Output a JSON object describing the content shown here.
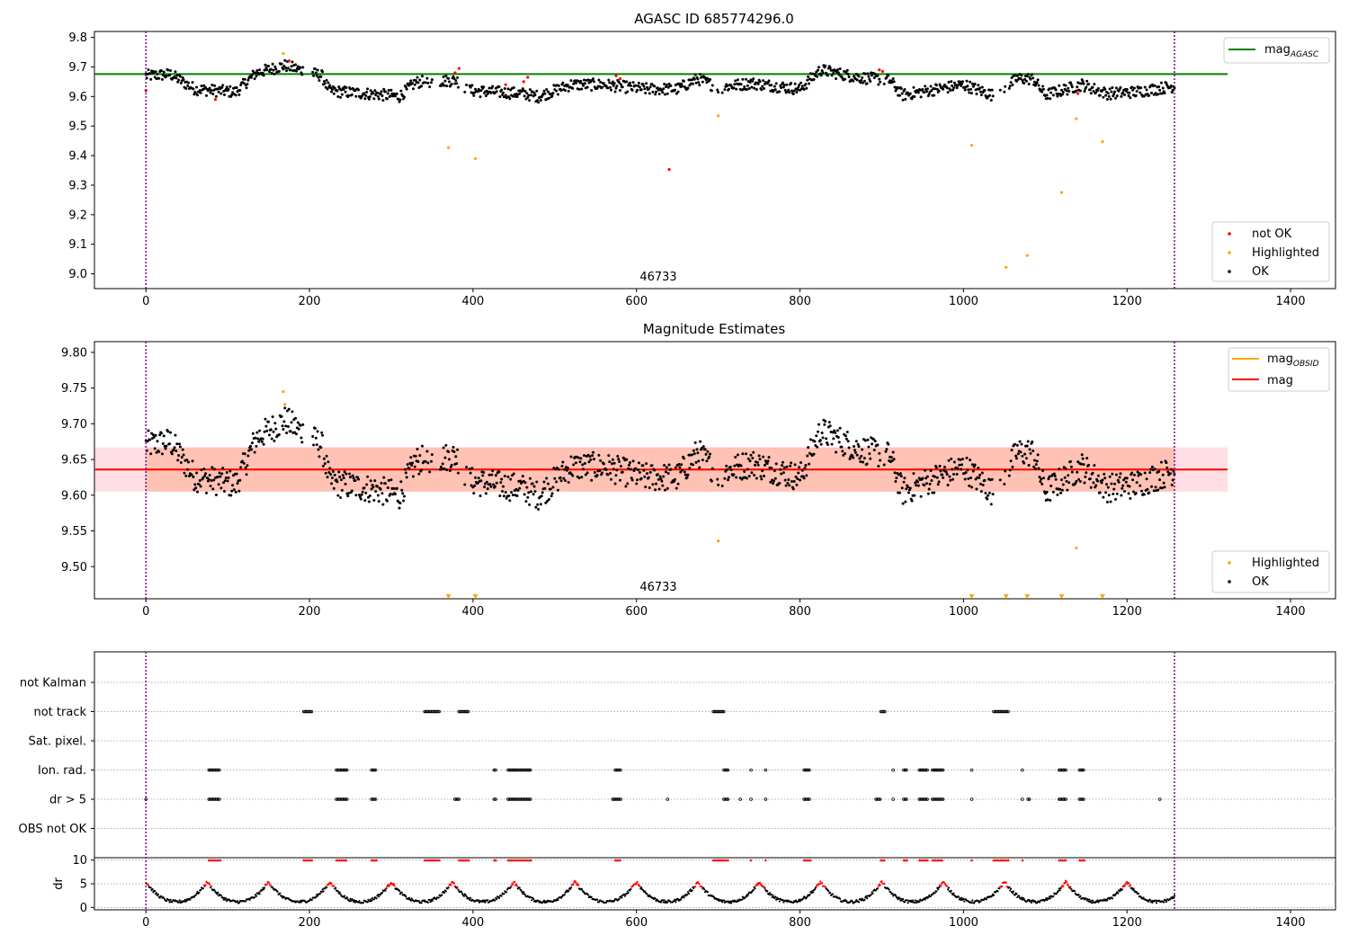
{
  "colors": {
    "ok": "#000000",
    "not_ok": "#ff0000",
    "highlighted": "#ffa500",
    "mag_agasc": "#008000",
    "mag": "#ff0000",
    "mag_obsid": "#ffa500",
    "band": "#ffc0cb",
    "band2": "#ffa07a",
    "obs_line": "#800080",
    "grid": "#b0b0b0"
  },
  "chart_data": [
    {
      "type": "scatter",
      "title": "AGASC ID 685774296.0",
      "annotation": "46733",
      "xlim": [
        -63,
        1455
      ],
      "ylim": [
        8.95,
        9.82
      ],
      "xticks": [
        0,
        200,
        400,
        600,
        800,
        1000,
        1200,
        1400
      ],
      "yticks": [
        9.0,
        9.1,
        9.2,
        9.3,
        9.4,
        9.5,
        9.6,
        9.7,
        9.8
      ],
      "ytick_labels": [
        "9.0",
        "9.1",
        "9.2",
        "9.3",
        "9.4",
        "9.5",
        "9.6",
        "9.7",
        "9.8"
      ],
      "obs_boundaries": [
        0,
        1258
      ],
      "hline": {
        "y": 9.676,
        "x": [
          -63,
          1323
        ],
        "label": "mag",
        "label_sub": "AGASC"
      },
      "legend_upper": [
        "mag_AGASC"
      ],
      "legend_lower": [
        "not OK",
        "Highlighted",
        "OK"
      ],
      "ok_series_note": "noisy time series of ~1260 points around 9.63",
      "highlighted_points": [
        [
          168,
          9.745
        ],
        [
          370,
          9.427
        ],
        [
          403,
          9.39
        ],
        [
          700,
          9.535
        ],
        [
          1010,
          9.435
        ],
        [
          1052,
          9.022
        ],
        [
          1078,
          9.062
        ],
        [
          1120,
          9.275
        ],
        [
          1138,
          9.525
        ],
        [
          1170,
          9.447
        ]
      ],
      "not_ok_points": [
        [
          0,
          9.62
        ],
        [
          85,
          9.59
        ],
        [
          175,
          9.72
        ],
        [
          378,
          9.68
        ],
        [
          383,
          9.695
        ],
        [
          440,
          9.64
        ],
        [
          462,
          9.65
        ],
        [
          467,
          9.665
        ],
        [
          575,
          9.67
        ],
        [
          580,
          9.66
        ],
        [
          640,
          9.353
        ],
        [
          897,
          9.69
        ],
        [
          901,
          9.685
        ],
        [
          1140,
          9.61
        ]
      ]
    },
    {
      "type": "scatter",
      "title": "Magnitude Estimates",
      "annotation": "46733",
      "xlim": [
        -63,
        1455
      ],
      "ylim": [
        9.455,
        9.815
      ],
      "xticks": [
        0,
        200,
        400,
        600,
        800,
        1000,
        1200,
        1400
      ],
      "yticks": [
        9.5,
        9.55,
        9.6,
        9.65,
        9.7,
        9.75,
        9.8
      ],
      "ytick_labels": [
        "9.50",
        "9.55",
        "9.60",
        "9.65",
        "9.70",
        "9.75",
        "9.80"
      ],
      "obs_boundaries": [
        0,
        1258
      ],
      "mag_line": {
        "y": 9.636,
        "x": [
          -63,
          1323
        ]
      },
      "band": {
        "y": [
          9.605,
          9.667
        ],
        "x": [
          -63,
          1323
        ]
      },
      "obsid_band": {
        "y": [
          9.605,
          9.667
        ],
        "x": [
          0,
          1258
        ]
      },
      "obsid_line": {
        "y": 9.636,
        "x": [
          0,
          1258
        ]
      },
      "legend_upper": [
        {
          "label": "mag",
          "sub": "OBSID"
        },
        {
          "label": "mag",
          "sub": ""
        }
      ],
      "legend_lower": [
        "Highlighted",
        "OK"
      ],
      "highlighted_points": [
        [
          168,
          9.745
        ],
        [
          170,
          9.727
        ],
        [
          700,
          9.536
        ],
        [
          1138,
          9.526
        ]
      ],
      "offscale_markers_x": [
        370,
        403,
        1010,
        1052,
        1078,
        1120,
        1170
      ]
    },
    {
      "type": "scatter",
      "title": "",
      "xlim": [
        -63,
        1455
      ],
      "flag_rows": [
        "not Kalman",
        "not track",
        "Sat. pixel.",
        "Ion. rad.",
        "dr > 5",
        "OBS not OK"
      ],
      "flag_ranges": {
        "not track": [
          [
            193,
            203
          ],
          [
            341,
            359
          ],
          [
            383,
            395
          ],
          [
            694,
            707
          ],
          [
            899,
            904
          ],
          [
            1037,
            1055
          ]
        ],
        "Ion. rad.": [
          [
            77,
            91
          ],
          [
            233,
            246
          ],
          [
            276,
            282
          ],
          [
            426,
            428
          ],
          [
            443,
            471
          ],
          [
            574,
            581
          ],
          [
            707,
            712
          ],
          [
            740,
            740
          ],
          [
            758,
            758
          ],
          [
            805,
            813
          ],
          [
            914,
            914
          ],
          [
            927,
            931
          ],
          [
            946,
            956
          ],
          [
            962,
            975
          ],
          [
            1010,
            1010
          ],
          [
            1072,
            1072
          ],
          [
            1117,
            1125
          ],
          [
            1142,
            1148
          ]
        ],
        "dr > 5": [
          [
            0,
            0
          ],
          [
            77,
            91
          ],
          [
            233,
            246
          ],
          [
            276,
            282
          ],
          [
            378,
            384
          ],
          [
            426,
            428
          ],
          [
            443,
            471
          ],
          [
            571,
            581
          ],
          [
            638,
            638
          ],
          [
            707,
            712
          ],
          [
            727,
            727
          ],
          [
            740,
            740
          ],
          [
            758,
            758
          ],
          [
            805,
            813
          ],
          [
            893,
            898
          ],
          [
            914,
            914
          ],
          [
            927,
            931
          ],
          [
            946,
            956
          ],
          [
            962,
            975
          ],
          [
            1010,
            1010
          ],
          [
            1072,
            1072
          ],
          [
            1079,
            1082
          ],
          [
            1117,
            1125
          ],
          [
            1142,
            1148
          ],
          [
            1240,
            1240
          ]
        ]
      },
      "obs_boundaries": [
        0,
        1258
      ]
    },
    {
      "type": "scatter",
      "title": "",
      "ylabel": "dr",
      "xlim": [
        -63,
        1455
      ],
      "ylim": [
        -0.5,
        10.5
      ],
      "xticks": [
        0,
        200,
        400,
        600,
        800,
        1000,
        1200,
        1400
      ],
      "yticks": [
        0,
        5,
        10
      ],
      "ytick_labels": [
        "0",
        "5",
        "10"
      ],
      "obs_boundaries": [
        0,
        1258
      ],
      "threshold": 5,
      "clipped_marker_ranges": [
        [
          77,
          91
        ],
        [
          193,
          203
        ],
        [
          233,
          246
        ],
        [
          276,
          282
        ],
        [
          341,
          359
        ],
        [
          383,
          395
        ],
        [
          426,
          428
        ],
        [
          443,
          471
        ],
        [
          574,
          581
        ],
        [
          694,
          712
        ],
        [
          740,
          740
        ],
        [
          758,
          758
        ],
        [
          805,
          813
        ],
        [
          899,
          904
        ],
        [
          927,
          931
        ],
        [
          946,
          956
        ],
        [
          962,
          975
        ],
        [
          1010,
          1010
        ],
        [
          1037,
          1055
        ],
        [
          1072,
          1072
        ],
        [
          1117,
          1125
        ],
        [
          1142,
          1148
        ]
      ]
    }
  ]
}
